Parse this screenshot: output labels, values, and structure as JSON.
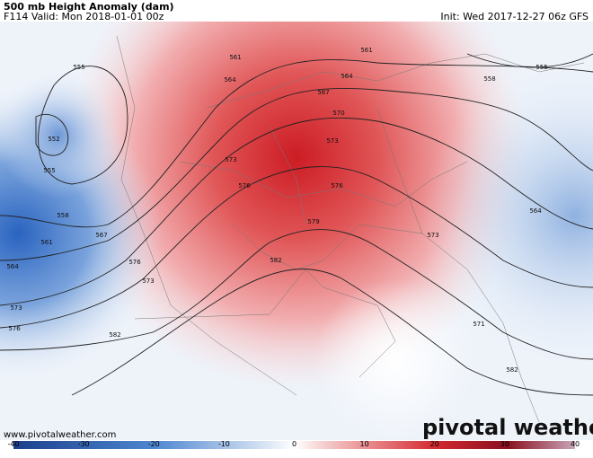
{
  "header": {
    "title": "500 mb Height Anomaly (dam)",
    "valid": "F114 Valid: Mon 2018-01-01 00z",
    "init": "Init: Wed 2017-12-27 06z GFS"
  },
  "map": {
    "contour_labels": [
      "555",
      "552",
      "555",
      "558",
      "561",
      "564",
      "567",
      "573",
      "576",
      "573",
      "576",
      "582",
      "561",
      "564",
      "567",
      "570",
      "573",
      "573",
      "576",
      "576",
      "579",
      "582",
      "573",
      "561",
      "564",
      "558",
      "555",
      "564",
      "571",
      "582"
    ]
  },
  "watermark": "www.pivotalweather.com",
  "logo": "pivotal weather",
  "colorbar": {
    "ticks": [
      -40,
      -30,
      -20,
      -10,
      0,
      10,
      20,
      30,
      40
    ]
  }
}
